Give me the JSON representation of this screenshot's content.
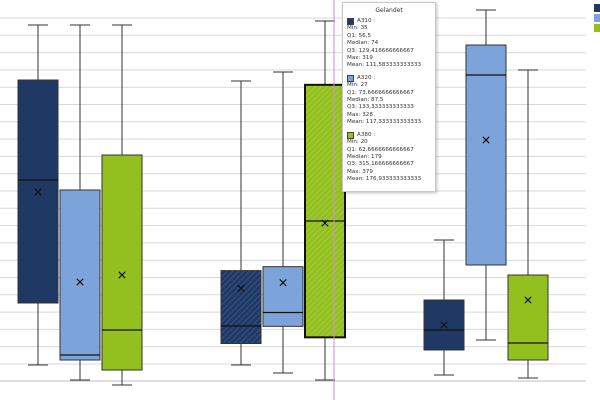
{
  "chart_data": {
    "type": "boxplot",
    "ylim": [
      0,
      400
    ],
    "grid": true,
    "groups": [
      {
        "boxes": [
          {
            "series": "A310",
            "color": "#1f3864",
            "min": 35,
            "q1": 97,
            "median": 220,
            "q3": 320,
            "max": 375,
            "mean": 208
          },
          {
            "series": "A320",
            "color": "#7ca4db",
            "min": 20,
            "q1": 40,
            "median": 45,
            "q3": 210,
            "max": 375,
            "mean": 118
          },
          {
            "series": "A380",
            "color": "#93c01f",
            "min": 15,
            "q1": 30,
            "median": 70,
            "q3": 245,
            "max": 375,
            "mean": 125
          }
        ]
      },
      {
        "boxes": [
          {
            "series": "A310",
            "color": "#1f3864",
            "min": 35,
            "q1": 56.5,
            "median": 74,
            "q3": 129.416666666667,
            "max": 319,
            "mean": 111.583333333333,
            "pattern": true
          },
          {
            "series": "A320",
            "color": "#7ca4db",
            "min": 27,
            "q1": 73.6666666666667,
            "median": 87.5,
            "q3": 133.333333333333,
            "max": 328,
            "mean": 117.333333333333
          },
          {
            "series": "A380",
            "color": "#93c01f",
            "min": 20,
            "q1": 62.6666666666667,
            "median": 179,
            "q3": 315.166666666667,
            "max": 379,
            "mean": 176.933333333333,
            "pattern": true,
            "highlight": true
          }
        ]
      },
      {
        "boxes": [
          {
            "series": "A310",
            "color": "#1f3864",
            "min": 25,
            "q1": 50,
            "median": 70,
            "q3": 100,
            "max": 160,
            "mean": 75
          },
          {
            "series": "A320",
            "color": "#7ca4db",
            "min": 60,
            "q1": 135,
            "median": 325,
            "q3": 355,
            "max": 390,
            "mean": 260
          },
          {
            "series": "A380",
            "color": "#93c01f",
            "min": 22,
            "q1": 40,
            "median": 57,
            "q3": 125,
            "max": 330,
            "mean": 100
          }
        ]
      }
    ]
  },
  "tooltip": {
    "title": "Gelandet",
    "entries": [
      {
        "color": "#1f3864",
        "name": "A310 :",
        "min": "Min: 35",
        "q1": "Q1: 56,5",
        "median": "Median: 74",
        "q3": "Q3: 129,416666666667",
        "max": "Max: 319",
        "mean": "Mean: 111,583333333333"
      },
      {
        "color": "#7ca4db",
        "name": "A320 :",
        "min": "Min: 27",
        "q1": "Q1: 73,6666666666667",
        "median": "Median: 87,5",
        "q3": "Q3: 133,333333333333",
        "max": "Max: 328",
        "mean": "Mean: 117,333333333333"
      },
      {
        "color": "#93c01f",
        "name": "A380 :",
        "min": "Min: 20",
        "q1": "Q1: 62,6666666666667",
        "median": "Median: 179",
        "q3": "Q3: 315,166666666667",
        "max": "Max: 379",
        "mean": "Mean: 176,933333333333"
      }
    ]
  },
  "legend": {
    "colors": [
      "#1f3864",
      "#7ca4db",
      "#93c01f"
    ]
  }
}
